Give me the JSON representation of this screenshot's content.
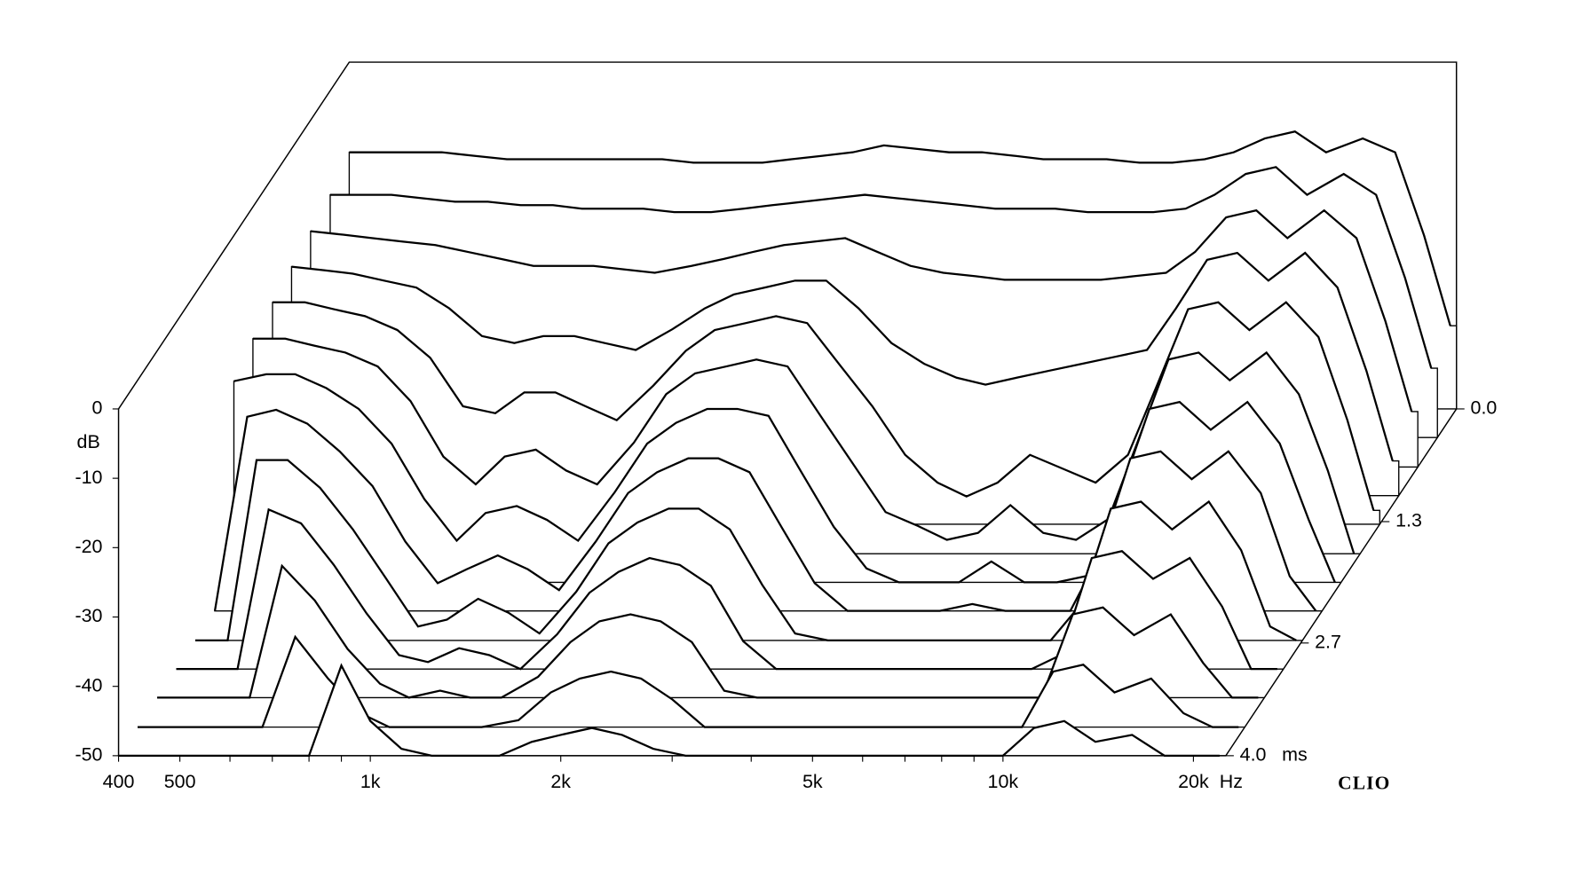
{
  "chart_data": {
    "type": "waterfall",
    "y_label": "dB",
    "x_unit": "Hz",
    "z_unit": "ms",
    "brand": "CLIO",
    "xlim": [
      400,
      22500
    ],
    "ylim": [
      -50,
      0
    ],
    "zlim": [
      0,
      4.0
    ],
    "log_x": true,
    "xticks": [
      400,
      500,
      {
        "value": 1000,
        "label": "1k"
      },
      {
        "value": 2000,
        "label": "2k"
      },
      {
        "value": 5000,
        "label": "5k"
      },
      {
        "value": 10000,
        "label": "10k"
      },
      {
        "value": 20000,
        "label": "20k"
      }
    ],
    "xminor_ticks": [
      600,
      700,
      800,
      900,
      3000,
      4000,
      6000,
      7000,
      8000,
      9000
    ],
    "yticks": [
      0,
      -10,
      -20,
      -30,
      -40,
      -50
    ],
    "zticks": [
      {
        "value": 0,
        "label": "0.0"
      },
      1.3,
      2.7,
      {
        "value": 4.0,
        "label": "4.0"
      }
    ],
    "color": "#000000",
    "x": [
      400,
      450,
      500,
      560,
      630,
      710,
      800,
      900,
      1000,
      1120,
      1250,
      1400,
      1600,
      1800,
      2000,
      2240,
      2500,
      2800,
      3150,
      3550,
      4000,
      4500,
      5000,
      5600,
      6300,
      7100,
      8000,
      9000,
      10000,
      11200,
      12500,
      14000,
      16000,
      18000,
      20000,
      22000
    ],
    "z": [
      0,
      0.33,
      0.67,
      1.0,
      1.33,
      1.67,
      2.0,
      2.33,
      2.67,
      3.0,
      3.33,
      3.67,
      4.0
    ],
    "slices": [
      [
        -13,
        -13,
        -13,
        -13,
        -13.5,
        -14,
        -14,
        -14,
        -14,
        -14,
        -14,
        -14.5,
        -14.5,
        -14.5,
        -14,
        -13.5,
        -13,
        -12,
        -12.5,
        -13,
        -13,
        -13.5,
        -14,
        -14,
        -14,
        -14.5,
        -14.5,
        -14,
        -13,
        -11,
        -10,
        -13,
        -11,
        -13,
        -25,
        -38
      ],
      [
        -15,
        -15,
        -15,
        -15.5,
        -16,
        -16,
        -16.5,
        -16.5,
        -17,
        -17,
        -17,
        -17.5,
        -17.5,
        -17,
        -16.5,
        -16,
        -15.5,
        -15,
        -15.5,
        -16,
        -16.5,
        -17,
        -17,
        -17,
        -17.5,
        -17.5,
        -17.5,
        -17,
        -15,
        -12,
        -11,
        -15,
        -12,
        -15,
        -27,
        -40
      ],
      [
        -16,
        -16.5,
        -17,
        -17.5,
        -18,
        -19,
        -20,
        -21,
        -21,
        -21,
        -21.5,
        -22,
        -21,
        -20,
        -19,
        -18,
        -17.5,
        -17,
        -19,
        -21,
        -22,
        -22.5,
        -23,
        -23,
        -23,
        -23,
        -22.5,
        -22,
        -19,
        -14,
        -13,
        -17,
        -13,
        -17,
        -29,
        -42
      ],
      [
        -17,
        -17.5,
        -18,
        -19,
        -20,
        -23,
        -27,
        -28,
        -27,
        -27,
        -28,
        -29,
        -26,
        -23,
        -21,
        -20,
        -19,
        -19,
        -23,
        -28,
        -31,
        -33,
        -34,
        -33,
        -32,
        -31,
        -30,
        -29,
        -23,
        -16,
        -15,
        -19,
        -15,
        -20,
        -32,
        -45
      ],
      [
        -18,
        -18,
        -19,
        -20,
        -22,
        -26,
        -33,
        -34,
        -31,
        -31,
        -33,
        -35,
        -30,
        -25,
        -22,
        -21,
        -20,
        -21,
        -27,
        -33,
        -40,
        -44,
        -46,
        -44,
        -40,
        -42,
        -44,
        -40,
        -30,
        -19,
        -18,
        -22,
        -18,
        -23,
        -35,
        -48
      ],
      [
        -19,
        -19,
        -20,
        -21,
        -23,
        -28,
        -36,
        -40,
        -36,
        -35,
        -38,
        -40,
        -34,
        -27,
        -24,
        -23,
        -22,
        -23,
        -30,
        -37,
        -44,
        -46,
        -48,
        -47,
        -43,
        -47,
        -48,
        -45,
        -34,
        -22,
        -21,
        -25,
        -21,
        -27,
        -38,
        -50
      ],
      [
        -21,
        -20,
        -20,
        -22,
        -25,
        -30,
        -38,
        -44,
        -40,
        -39,
        -41,
        -44,
        -37,
        -30,
        -27,
        -25,
        -25,
        -26,
        -34,
        -42,
        -48,
        -50,
        -50,
        -50,
        -47,
        -50,
        -50,
        -49,
        -38,
        -25,
        -24,
        -28,
        -24,
        -30,
        -41,
        -50
      ],
      [
        -50,
        -22,
        -21,
        -23,
        -27,
        -32,
        -40,
        -46,
        -44,
        -42,
        -44,
        -47,
        -40,
        -33,
        -30,
        -28,
        -28,
        -30,
        -38,
        -46,
        -50,
        -50,
        -50,
        -50,
        -49,
        -50,
        -50,
        -50,
        -42,
        -28,
        -27,
        -31,
        -27,
        -33,
        -45,
        -50
      ],
      [
        -50,
        -50,
        -24,
        -24,
        -28,
        -34,
        -41,
        -48,
        -47,
        -44,
        -46,
        -49,
        -43,
        -36,
        -33,
        -31,
        -31,
        -34,
        -42,
        -49,
        -50,
        -50,
        -50,
        -50,
        -50,
        -50,
        -50,
        -50,
        -45,
        -31,
        -30,
        -34,
        -30,
        -37,
        -48,
        -50
      ],
      [
        -50,
        -50,
        -50,
        -27,
        -29,
        -35,
        -42,
        -48,
        -49,
        -47,
        -48,
        -50,
        -45,
        -39,
        -36,
        -34,
        -35,
        -38,
        -46,
        -50,
        -50,
        -50,
        -50,
        -50,
        -50,
        -50,
        -50,
        -50,
        -48,
        -34,
        -33,
        -37,
        -34,
        -41,
        -50,
        -50
      ],
      [
        -50,
        -50,
        -50,
        -50,
        -31,
        -36,
        -43,
        -48,
        -50,
        -49,
        -50,
        -50,
        -47,
        -42,
        -39,
        -38,
        -39,
        -42,
        -49,
        -50,
        -50,
        -50,
        -50,
        -50,
        -50,
        -50,
        -50,
        -50,
        -50,
        -38,
        -37,
        -41,
        -38,
        -45,
        -50,
        -50
      ],
      [
        -50,
        -50,
        -50,
        -50,
        -50,
        -37,
        -43,
        -48,
        -50,
        -50,
        -50,
        -50,
        -49,
        -45,
        -43,
        -42,
        -43,
        -46,
        -50,
        -50,
        -50,
        -50,
        -50,
        -50,
        -50,
        -50,
        -50,
        -50,
        -50,
        -42,
        -41,
        -45,
        -43,
        -48,
        -50,
        -50
      ],
      [
        -50,
        -50,
        -50,
        -50,
        -50,
        -50,
        -50,
        -37,
        -45,
        -49,
        -50,
        -50,
        -50,
        -48,
        -47,
        -46,
        -47,
        -49,
        -50,
        -50,
        -50,
        -50,
        -50,
        -50,
        -50,
        -50,
        -50,
        -50,
        -50,
        -46,
        -45,
        -48,
        -47,
        -50,
        -50,
        -50
      ]
    ]
  }
}
